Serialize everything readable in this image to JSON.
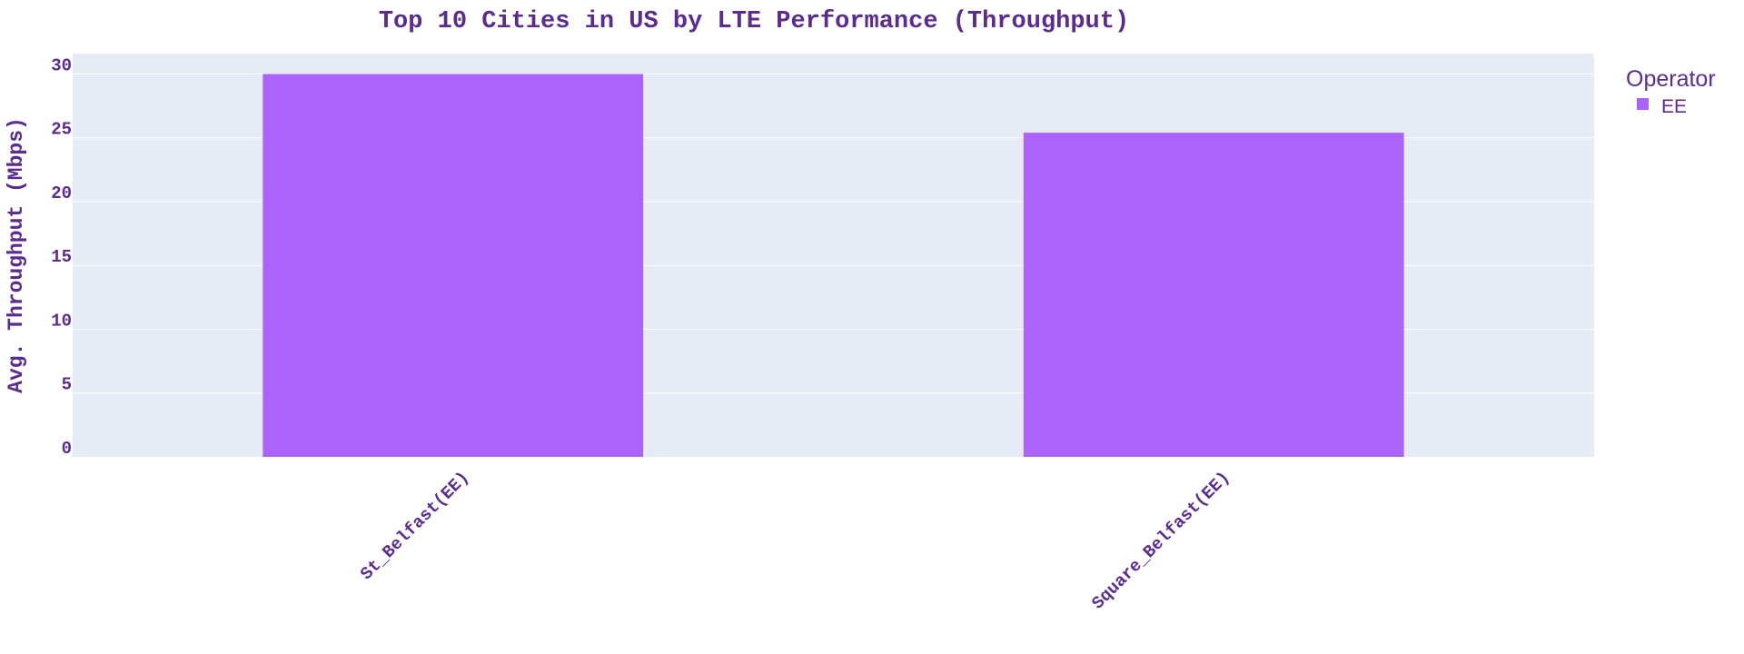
{
  "chart_data": {
    "type": "bar",
    "title": "Top 10 Cities in US by LTE Performance (Throughput)",
    "xlabel": "",
    "ylabel": "Avg. Throughput (Mbps)",
    "categories": [
      "St_Belfast(EE)",
      "Square_Belfast(EE)"
    ],
    "series": [
      {
        "name": "EE",
        "values": [
          30.0,
          25.4
        ]
      }
    ],
    "ylim": [
      0,
      31.6
    ],
    "yticks": [
      0,
      5,
      10,
      15,
      20,
      25,
      30
    ],
    "grid": true,
    "legend": {
      "title": "Operator",
      "placement": "top-right"
    },
    "colors": {
      "bar": "#AB63FA",
      "plot_bg": "#E5ECF6",
      "grid": "#FFFFFF",
      "text": "#5B2C8F"
    }
  }
}
